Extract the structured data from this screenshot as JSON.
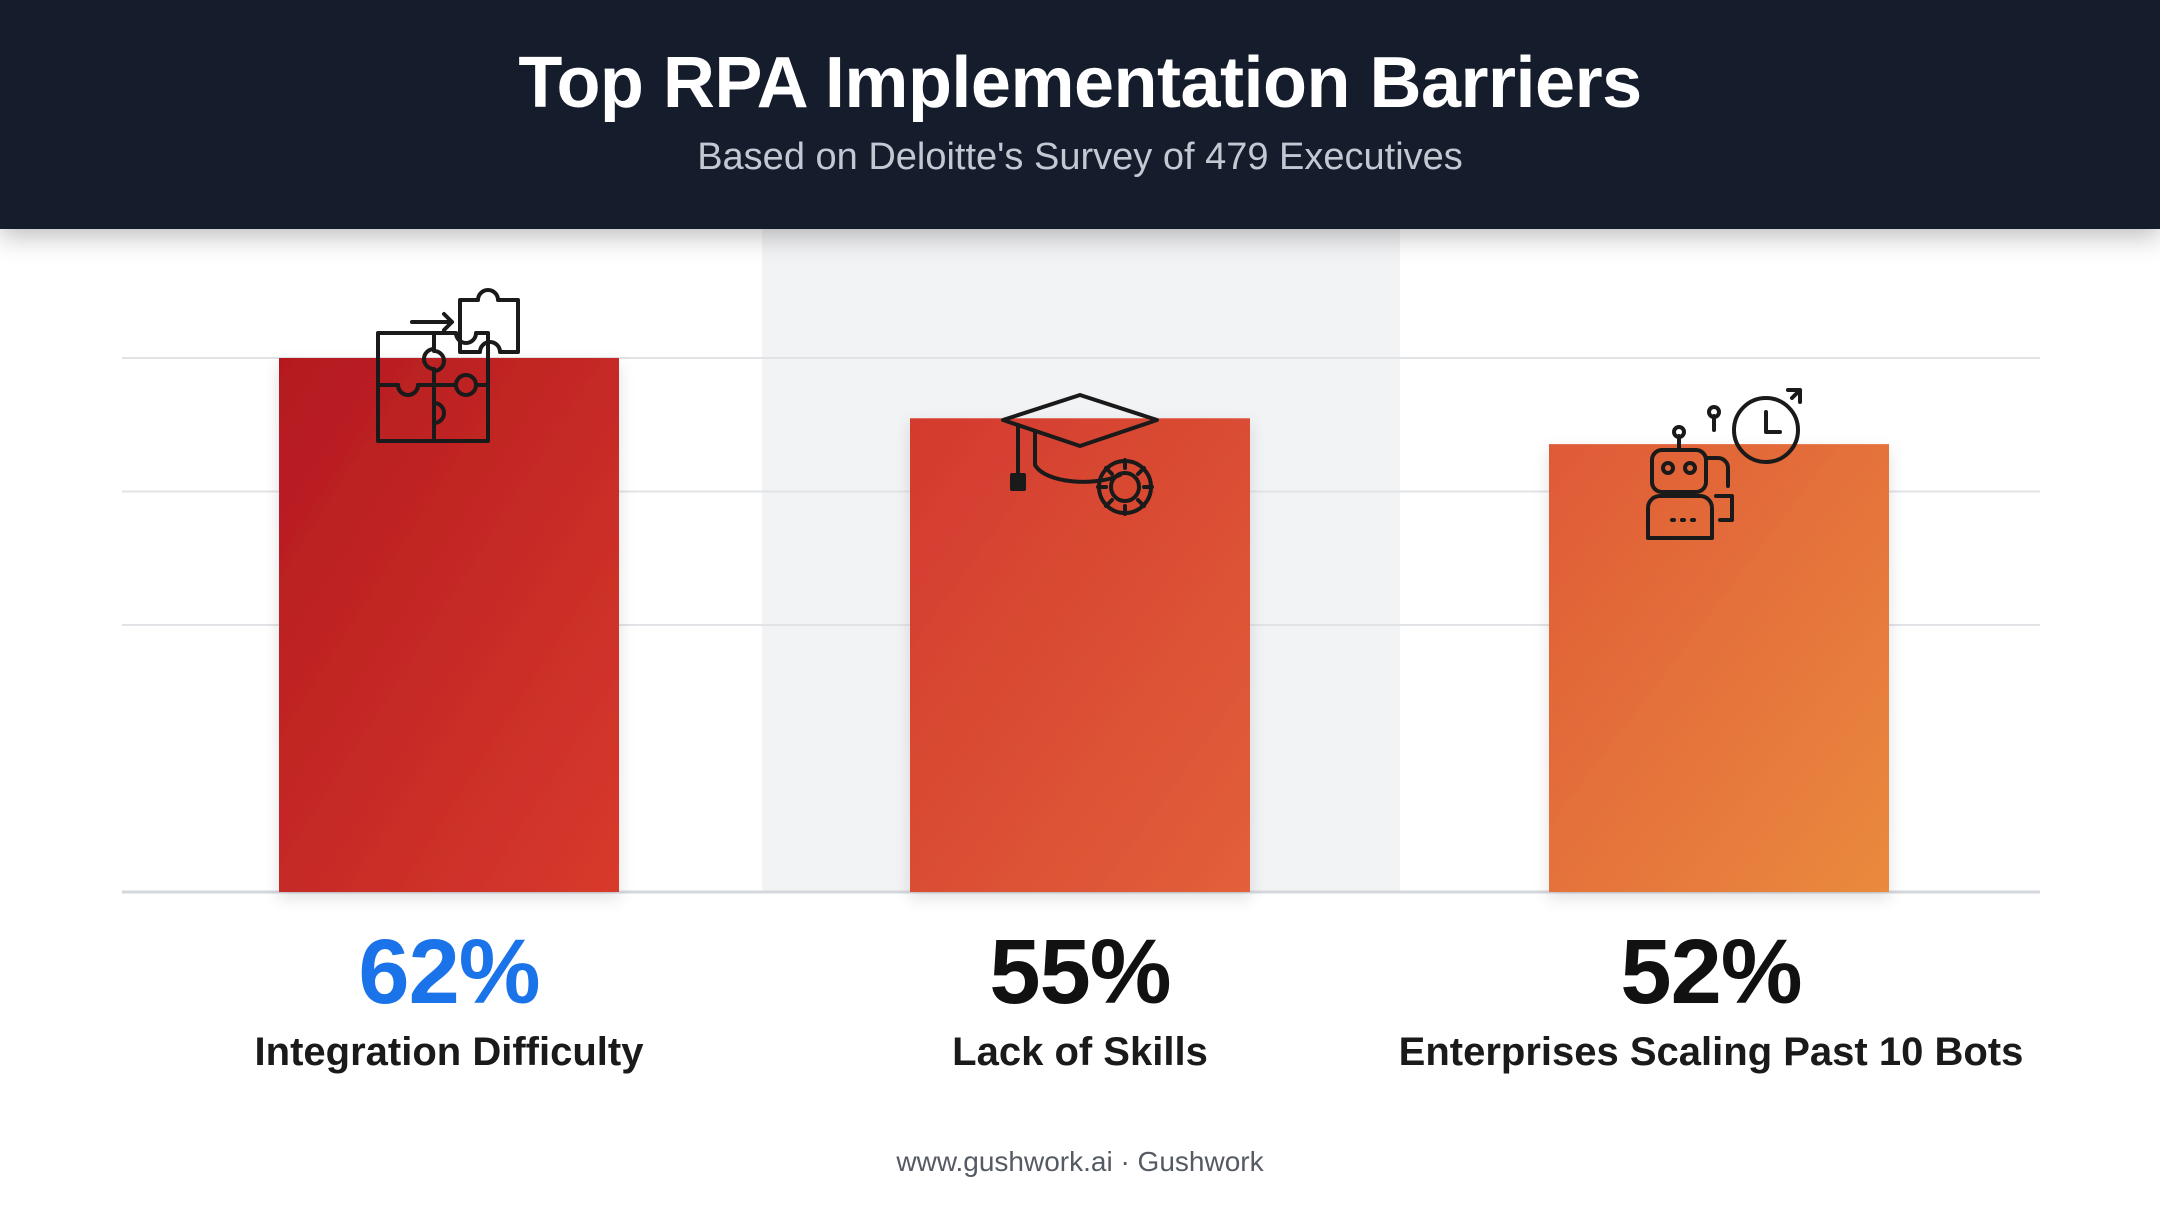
{
  "header": {
    "title": "Top RPA Implementation Barriers",
    "subtitle": "Based on Deloitte's Survey of 479 Executives"
  },
  "chart_data": {
    "type": "bar",
    "title": "Top RPA Implementation Barriers",
    "subtitle": "Based on Deloitte's Survey of 479 Executives",
    "categories": [
      "Integration Difficulty",
      "Lack of Skills",
      "Enterprises Scaling Past 10 Bots"
    ],
    "values": [
      62,
      55,
      52
    ],
    "value_labels": [
      "62%",
      "55%",
      "52%"
    ],
    "icons": [
      "puzzle-icon",
      "graduation-cap-gear-icon",
      "robot-clock-icon"
    ],
    "highlighted_category": "Integration Difficulty",
    "ylim": [
      0,
      100
    ],
    "grid": true,
    "legend": "none",
    "colors": {
      "bar_gradients": [
        [
          "#b3191f",
          "#d83a2c"
        ],
        [
          "#d33a2e",
          "#e2603a"
        ],
        [
          "#df5a37",
          "#ea8a3e"
        ]
      ],
      "highlight_label": "#1a73e8",
      "label": "#111111",
      "header_bg": "#151c2b"
    }
  },
  "footer": {
    "text": "www.gushwork.ai · Gushwork"
  }
}
